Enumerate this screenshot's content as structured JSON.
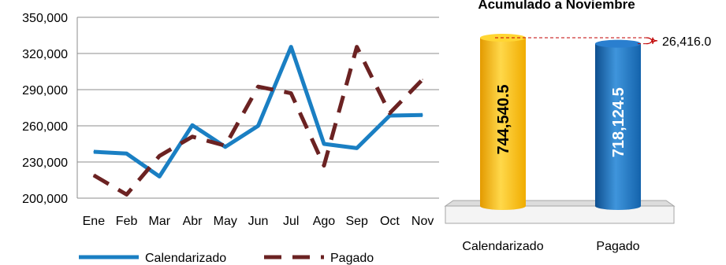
{
  "chart_data": [
    {
      "type": "line",
      "title": "",
      "xlabel": "",
      "ylabel": "",
      "categories": [
        "Ene",
        "Feb",
        "Mar",
        "Abr",
        "May",
        "Jun",
        "Jul",
        "Ago",
        "Sep",
        "Oct",
        "Nov"
      ],
      "ylim": [
        200000,
        350000
      ],
      "yticks": [
        "200,000",
        "230,000",
        "260,000",
        "290,000",
        "320,000",
        "350,000"
      ],
      "grid": true,
      "legend": "bottom",
      "series": [
        {
          "name": "Calendarizado",
          "style": "solid",
          "color": "#1a7fc3",
          "values": [
            238500,
            237000,
            218000,
            260500,
            242500,
            260000,
            325500,
            245000,
            241500,
            268500,
            269000
          ]
        },
        {
          "name": "Pagado",
          "style": "dashed",
          "color": "#6b2222",
          "values": [
            219000,
            203000,
            235000,
            251000,
            243500,
            292500,
            287000,
            227000,
            325500,
            270500,
            298500
          ]
        }
      ]
    },
    {
      "type": "bar",
      "title": "Acumulado a Noviembre",
      "categories": [
        "Calendarizado",
        "Pagado"
      ],
      "values": [
        744540.5,
        718124.5
      ],
      "value_labels": [
        "744,540.5",
        "718,124.5"
      ],
      "colors": [
        "#f5b800",
        "#1565ad"
      ],
      "difference_label": "26,416.0",
      "difference_color": "#c00000"
    }
  ]
}
